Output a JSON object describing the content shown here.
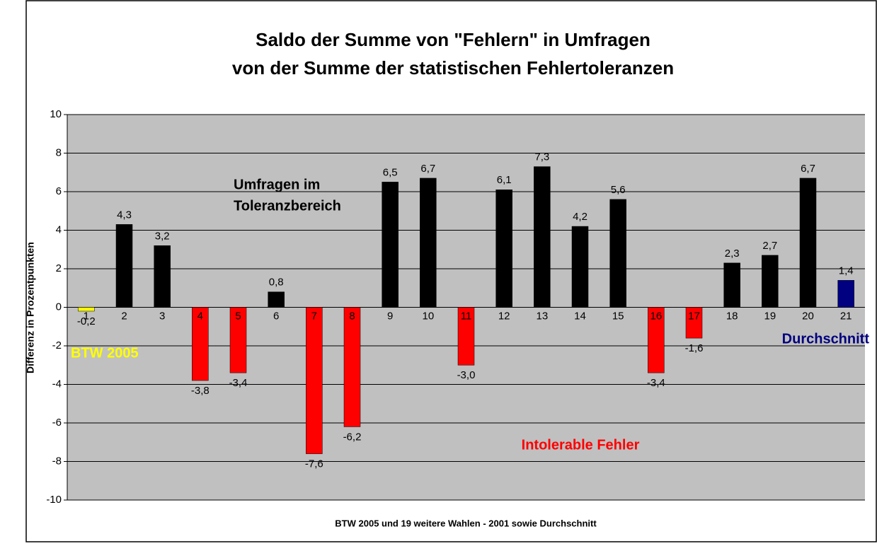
{
  "chart_data": {
    "type": "bar",
    "title": [
      "Saldo der Summe von \"Fehlern\" in Umfragen",
      "von der Summe der statistischen Fehlertoleranzen"
    ],
    "y_label": "Differenz in Prozentpunkten",
    "x_label": "BTW 2005 und 19 weitere Wahlen - 2001 sowie Durchschnitt",
    "categories": [
      "1",
      "2",
      "3",
      "4",
      "5",
      "6",
      "7",
      "8",
      "9",
      "10",
      "11",
      "12",
      "13",
      "14",
      "15",
      "16",
      "17",
      "18",
      "19",
      "20",
      "21"
    ],
    "values": [
      -0.2,
      4.3,
      3.2,
      -3.8,
      -3.4,
      0.8,
      -7.6,
      -6.2,
      6.5,
      6.7,
      -3.0,
      6.1,
      7.3,
      4.2,
      5.6,
      -3.4,
      -1.6,
      2.3,
      2.7,
      6.7,
      1.4
    ],
    "value_labels": [
      "-0,2",
      "4,3",
      "3,2",
      "-3,8",
      "-3,4",
      "0,8",
      "-7,6",
      "-6,2",
      "6,5",
      "6,7",
      "-3,0",
      "6,1",
      "7,3",
      "4,2",
      "5,6",
      "-3,4",
      "-1,6",
      "2,3",
      "2,7",
      "6,7",
      "1,4"
    ],
    "colors": [
      "#ffff00",
      "#000000",
      "#000000",
      "#ff0000",
      "#ff0000",
      "#000000",
      "#ff0000",
      "#ff0000",
      "#000000",
      "#000000",
      "#ff0000",
      "#000000",
      "#000000",
      "#000000",
      "#000000",
      "#ff0000",
      "#ff0000",
      "#000000",
      "#000000",
      "#000000",
      "#000080"
    ],
    "ylim": [
      -10,
      10
    ],
    "yticks": [
      -10,
      -8,
      -6,
      -4,
      -2,
      0,
      2,
      4,
      6,
      8,
      10
    ],
    "grid": true,
    "annotations": [
      {
        "text": [
          "Umfragen im",
          "Toleranzbereich"
        ],
        "color": "#000000"
      },
      {
        "text": [
          "Intolerable Fehler"
        ],
        "color": "#ff0000"
      },
      {
        "text": [
          "BTW 2005"
        ],
        "color": "#ffff00"
      },
      {
        "text": [
          "Durchschnitt"
        ],
        "color": "#000080"
      }
    ]
  }
}
